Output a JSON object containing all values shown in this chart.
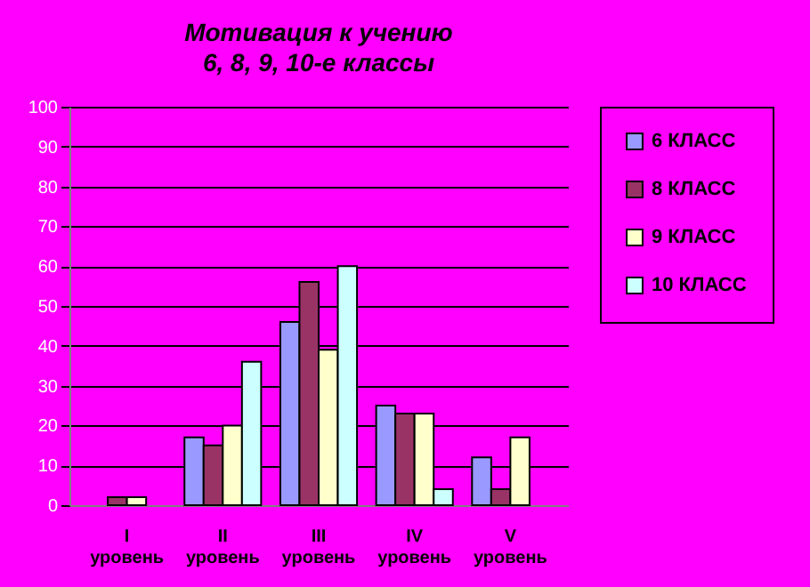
{
  "chart_data": {
    "type": "bar",
    "title": "Мотивация к учению",
    "subtitle": "6, 8, 9, 10-е классы",
    "categories": [
      "I уровень",
      "II уровень",
      "III уровень",
      "IV уровень",
      "V уровень"
    ],
    "series": [
      {
        "name": "6 КЛАСС",
        "color": "#9999ff",
        "values": [
          null,
          17,
          46,
          25,
          12
        ]
      },
      {
        "name": "8 КЛАСС",
        "color": "#993366",
        "values": [
          2,
          15,
          56,
          23,
          4
        ]
      },
      {
        "name": "9 КЛАСС",
        "color": "#ffffcc",
        "values": [
          2,
          20,
          39,
          23,
          17
        ]
      },
      {
        "name": "10 КЛАСС",
        "color": "#ccffff",
        "values": [
          null,
          36,
          60,
          4,
          null
        ]
      }
    ],
    "ylim": [
      0,
      100
    ],
    "yticks": [
      0,
      10,
      20,
      30,
      40,
      50,
      60,
      70,
      80,
      90,
      100
    ],
    "grid": "y",
    "legend": "right"
  }
}
